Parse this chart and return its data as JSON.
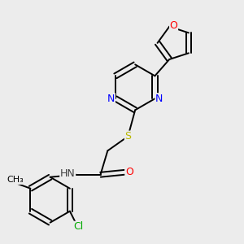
{
  "background_color": "#ececec",
  "bond_color": "#000000",
  "atom_colors": {
    "N": "#0000ff",
    "O": "#ff0000",
    "S": "#b8b800",
    "Cl": "#00aa00",
    "H": "#404040",
    "C": "#000000"
  },
  "figsize": [
    3.0,
    3.0
  ],
  "dpi": 100
}
